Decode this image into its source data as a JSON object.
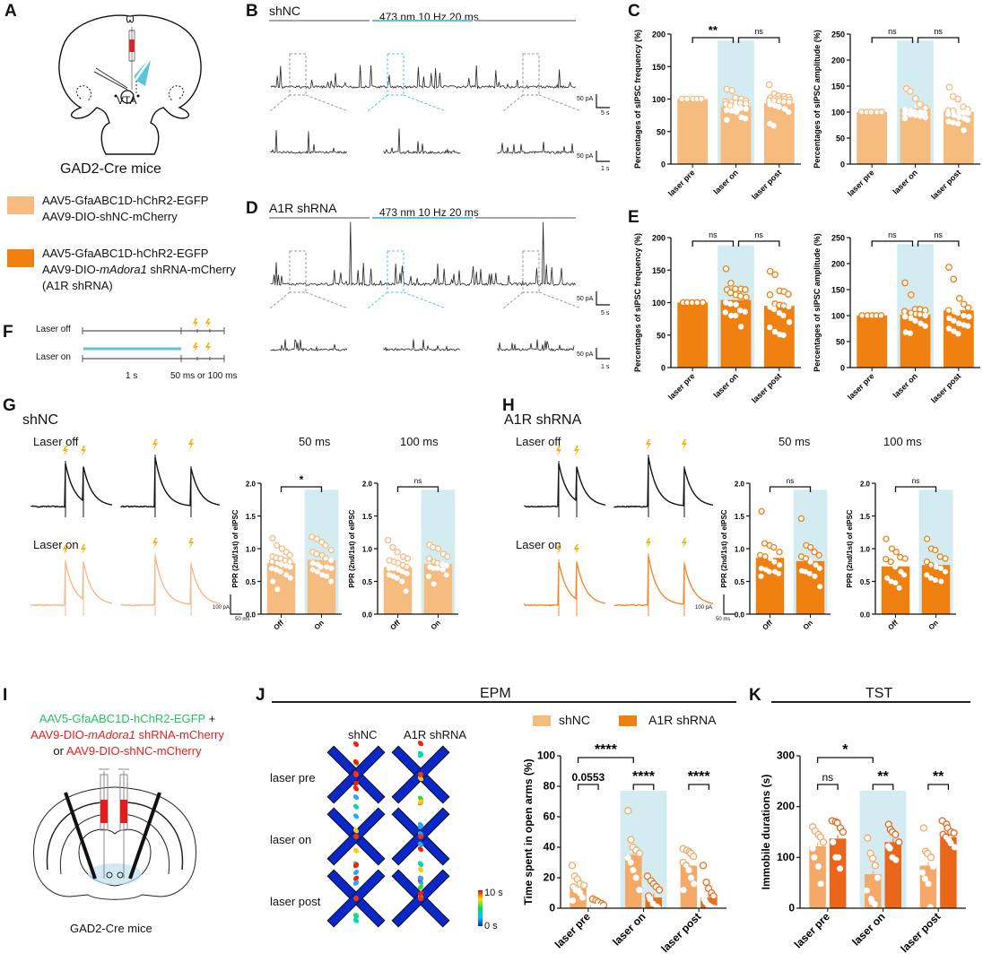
{
  "colors": {
    "shNC": "#f6bb7f",
    "shNC_on_J": "#f4a968",
    "A1R": "#f08010",
    "A1R_K": "#e9661a",
    "laser_bg": "#d3ecf2",
    "laser_bar": "#5bc4d9",
    "gray_bar": "#a6a6a6",
    "bolt": "#f6b21a",
    "green_text": "#22c55e",
    "red_text": "#ee1c1c"
  },
  "panel_labels": {
    "A": "A",
    "B": "B",
    "C": "C",
    "D": "D",
    "E": "E",
    "F": "F",
    "G": "G",
    "H": "H",
    "I": "I",
    "J": "J",
    "K": "K"
  },
  "panelA": {
    "region_label": "VTA",
    "mouse_line": "GAD2-Cre mice",
    "legend": [
      {
        "line1": "AAV5-GfaABC1D-hChR2-EGFP",
        "line2": "AAV9-DIO-shNC-mCherry",
        "line3": ""
      },
      {
        "line1": "AAV5-GfaABC1D-hChR2-EGFP",
        "line2_pre": "AAV9-DIO-",
        "line2_italic": "mAdora1",
        "line2_post": " shRNA-mCherry",
        "line3": "(A1R shRNA)"
      }
    ]
  },
  "panelB": {
    "title": "shNC",
    "stim_label": "473 nm 10 Hz 20 ms",
    "scale_main": {
      "y": "50 pA",
      "x": "5 s"
    },
    "scale_zoom": {
      "y": "50 pA",
      "x": "1 s"
    }
  },
  "panelD": {
    "title": "A1R shRNA",
    "stim_label": "473 nm 10 Hz 20 ms",
    "scale_main": {
      "y": "50 pA",
      "x": "5 s"
    },
    "scale_zoom": {
      "y": "50 pA",
      "x": "1 s"
    }
  },
  "panelF": {
    "rows": [
      "Laser off",
      "Laser on"
    ],
    "time_labels": [
      "1 s",
      "50 ms or 100 ms"
    ]
  },
  "panelG": {
    "title": "shNC",
    "trace_labels": [
      "Laser off",
      "Laser on"
    ],
    "chart_titles": [
      "50 ms",
      "100 ms"
    ],
    "scale": {
      "y": "100 pA",
      "x": "50 ms"
    }
  },
  "panelH": {
    "title": "A1R shRNA",
    "trace_labels": [
      "Laser off",
      "Laser on"
    ],
    "chart_titles": [
      "50 ms",
      "100 ms"
    ],
    "scale": {
      "y": "100 pA",
      "x": "50 ms"
    }
  },
  "panelI": {
    "line1_green": "AAV5-GfaABC1D-hChR2-EGFP",
    "line1_plus": " +",
    "line2_pre": "AAV9-DIO-",
    "line2_italic": "mAdora1",
    "line2_post": " shRNA-mCherry",
    "line3_or": "or ",
    "line3_red": "AAV9-DIO-shNC-mCherry",
    "mouse_line": "GAD2-Cre mice"
  },
  "panelJ": {
    "header": "EPM",
    "heatmap_cols": [
      "shNC",
      "A1R shRNA"
    ],
    "heatmap_rows": [
      "laser pre",
      "laser on",
      "laser post"
    ],
    "colorbar": {
      "max": "10 s",
      "min": "0 s"
    },
    "legend": [
      "shNC",
      "A1R shRNA"
    ]
  },
  "panelK": {
    "header": "TST"
  },
  "chart_data": [
    {
      "id": "C-frequency",
      "type": "bar",
      "panel": "C",
      "ylabel": "Percentages of sIPSC frequency (%)",
      "ylim": [
        0,
        200
      ],
      "yticks": [
        0,
        50,
        100,
        150,
        200
      ],
      "categories": [
        "laser pre",
        "laser on",
        "laser post"
      ],
      "laser_on_index": 1,
      "values": [
        100,
        89,
        94
      ],
      "points": [
        [
          100,
          100,
          100,
          100,
          100
        ],
        [
          115,
          113,
          102,
          100,
          97,
          96,
          95,
          94,
          94,
          93,
          92,
          90,
          88,
          86,
          85,
          83,
          82,
          80,
          72,
          70,
          68
        ],
        [
          122,
          108,
          105,
          104,
          103,
          102,
          101,
          100,
          100,
          99,
          98,
          98,
          97,
          96,
          95,
          92,
          90,
          88,
          85,
          80,
          62,
          59
        ]
      ],
      "comparisons": [
        {
          "from": 0,
          "to": 1,
          "label": "**"
        },
        {
          "from": 1,
          "to": 2,
          "label": "ns"
        }
      ],
      "color": "#f6bb7f"
    },
    {
      "id": "C-amplitude",
      "type": "bar",
      "panel": "C",
      "ylabel": "Percentages of sIPSC amplitude (%)",
      "ylim": [
        0,
        250
      ],
      "yticks": [
        0,
        50,
        100,
        150,
        200,
        250
      ],
      "categories": [
        "laser pre",
        "laser on",
        "laser post"
      ],
      "laser_on_index": 1,
      "values": [
        100,
        107,
        101
      ],
      "points": [
        [
          100,
          100,
          100,
          100,
          100
        ],
        [
          145,
          140,
          126,
          115,
          108,
          104,
          102,
          100,
          100,
          98,
          97,
          95,
          94,
          92,
          90,
          88
        ],
        [
          148,
          130,
          125,
          110,
          105,
          103,
          102,
          100,
          99,
          98,
          96,
          94,
          90,
          88,
          85,
          82,
          80,
          78,
          65
        ]
      ],
      "comparisons": [
        {
          "from": 0,
          "to": 1,
          "label": "ns"
        },
        {
          "from": 1,
          "to": 2,
          "label": "ns"
        }
      ],
      "color": "#f6bb7f"
    },
    {
      "id": "E-frequency",
      "type": "bar",
      "panel": "E",
      "ylabel": "Percentages of sIPSC frequency (%)",
      "ylim": [
        0,
        200
      ],
      "yticks": [
        0,
        50,
        100,
        150,
        200
      ],
      "categories": [
        "laser pre",
        "laser on",
        "laser post"
      ],
      "laser_on_index": 1,
      "values": [
        100,
        104,
        95
      ],
      "points": [
        [
          100,
          100,
          100,
          100,
          100
        ],
        [
          152,
          130,
          121,
          121,
          120,
          120,
          115,
          112,
          110,
          108,
          100,
          98,
          97,
          88,
          86,
          85,
          80,
          80,
          63
        ],
        [
          148,
          143,
          118,
          117,
          113,
          112,
          98,
          96,
          95,
          94,
          93,
          90,
          84,
          80,
          70,
          62,
          55,
          51,
          50
        ]
      ],
      "comparisons": [
        {
          "from": 0,
          "to": 1,
          "label": "ns"
        },
        {
          "from": 1,
          "to": 2,
          "label": "ns"
        }
      ],
      "color": "#f08010"
    },
    {
      "id": "E-amplitude",
      "type": "bar",
      "panel": "E",
      "ylabel": "Percentages of sIPSC amplitude (%)",
      "ylim": [
        0,
        250
      ],
      "yticks": [
        0,
        50,
        100,
        150,
        200,
        250
      ],
      "categories": [
        "laser pre",
        "laser on",
        "laser post"
      ],
      "laser_on_index": 1,
      "values": [
        100,
        102,
        110
      ],
      "points": [
        [
          100,
          100,
          100,
          100,
          100
        ],
        [
          163,
          140,
          112,
          112,
          110,
          108,
          105,
          103,
          102,
          100,
          98,
          95,
          90,
          85,
          80,
          68,
          66
        ],
        [
          193,
          170,
          133,
          122,
          115,
          110,
          108,
          105,
          100,
          98,
          95,
          90,
          85,
          82,
          80,
          75,
          70,
          65
        ]
      ],
      "comparisons": [
        {
          "from": 0,
          "to": 1,
          "label": "ns"
        },
        {
          "from": 1,
          "to": 2,
          "label": "ns"
        }
      ],
      "color": "#f08010"
    },
    {
      "id": "G-50ms",
      "type": "bar",
      "panel": "G",
      "title": "50 ms",
      "ylabel": "PPR (2nd/1st) of eIPSC",
      "ylim": [
        0,
        2.0
      ],
      "yticks": [
        "0.0",
        "0.5",
        "1.0",
        "1.5",
        "2.0"
      ],
      "categories": [
        "Off",
        "On"
      ],
      "laser_on_index": 1,
      "values": [
        0.78,
        0.83
      ],
      "points": [
        [
          1.16,
          1.05,
          1.0,
          0.95,
          0.9,
          0.88,
          0.86,
          0.85,
          0.82,
          0.8,
          0.8,
          0.78,
          0.76,
          0.74,
          0.72,
          0.7,
          0.68,
          0.65,
          0.6,
          0.55,
          0.5,
          0.38
        ],
        [
          1.18,
          1.15,
          1.1,
          1.05,
          0.98,
          0.95,
          0.92,
          0.9,
          0.85,
          0.82,
          0.78,
          0.76,
          0.72,
          0.72,
          0.7,
          0.68,
          0.65,
          0.6,
          0.58,
          0.5
        ]
      ],
      "comparisons": [
        {
          "from": 0,
          "to": 1,
          "label": "*"
        }
      ],
      "color": "#f6bb7f"
    },
    {
      "id": "G-100ms",
      "type": "bar",
      "panel": "G",
      "title": "100 ms",
      "ylabel": "PPR (2nd/1st) of eIPSC",
      "ylim": [
        0,
        2.0
      ],
      "yticks": [
        "0.0",
        "0.5",
        "1.0",
        "1.5",
        "2.0"
      ],
      "categories": [
        "Off",
        "On"
      ],
      "laser_on_index": 1,
      "values": [
        0.72,
        0.77
      ],
      "points": [
        [
          1.13,
          1.02,
          0.95,
          0.88,
          0.85,
          0.82,
          0.8,
          0.78,
          0.75,
          0.72,
          0.7,
          0.7,
          0.68,
          0.65,
          0.62,
          0.6,
          0.58,
          0.55,
          0.5,
          0.35
        ],
        [
          1.06,
          1.02,
          1.0,
          0.92,
          0.88,
          0.85,
          0.8,
          0.78,
          0.76,
          0.74,
          0.72,
          0.7,
          0.7,
          0.68,
          0.6,
          0.58,
          0.46
        ]
      ],
      "comparisons": [
        {
          "from": 0,
          "to": 1,
          "label": "ns"
        }
      ],
      "color": "#f6bb7f"
    },
    {
      "id": "H-50ms",
      "type": "bar",
      "panel": "H",
      "title": "50 ms",
      "ylabel": "PPR (2nd/1st) of eIPSC",
      "ylim": [
        0,
        2.0
      ],
      "yticks": [
        "0.0",
        "0.5",
        "1.0",
        "1.5",
        "2.0"
      ],
      "categories": [
        "Off",
        "On"
      ],
      "laser_on_index": 1,
      "values": [
        0.86,
        0.81
      ],
      "points": [
        [
          1.57,
          1.08,
          1.05,
          1.02,
          0.95,
          0.9,
          0.88,
          0.85,
          0.8,
          0.75,
          0.7,
          0.68,
          0.65,
          0.65,
          0.62,
          0.58
        ],
        [
          1.46,
          1.05,
          1.02,
          0.95,
          0.9,
          0.88,
          0.85,
          0.8,
          0.75,
          0.7,
          0.66,
          0.65,
          0.62,
          0.58,
          0.42
        ]
      ],
      "comparisons": [
        {
          "from": 0,
          "to": 1,
          "label": "ns"
        }
      ],
      "color": "#f08010"
    },
    {
      "id": "H-100ms",
      "type": "bar",
      "panel": "H",
      "title": "100 ms",
      "ylabel": "PPR (2nd/1st) of eIPSC",
      "ylim": [
        0,
        2.0
      ],
      "yticks": [
        "0.0",
        "0.5",
        "1.0",
        "1.5",
        "2.0"
      ],
      "categories": [
        "Off",
        "On"
      ],
      "laser_on_index": 1,
      "values": [
        0.73,
        0.75
      ],
      "points": [
        [
          1.15,
          1.0,
          0.95,
          0.87,
          0.85,
          0.84,
          0.8,
          0.72,
          0.65,
          0.6,
          0.55,
          0.5,
          0.48,
          0.4
        ],
        [
          1.15,
          1.0,
          0.98,
          0.88,
          0.85,
          0.8,
          0.75,
          0.72,
          0.7,
          0.65,
          0.6,
          0.55,
          0.52,
          0.5
        ]
      ],
      "comparisons": [
        {
          "from": 0,
          "to": 1,
          "label": "ns"
        }
      ],
      "color": "#f08010"
    },
    {
      "id": "J-open-arms",
      "type": "bar",
      "panel": "J",
      "ylabel": "Time spent in open arms (%)",
      "ylim": [
        0,
        100
      ],
      "yticks": [
        0,
        20,
        40,
        60,
        80,
        100
      ],
      "categories": [
        "laser pre",
        "laser on",
        "laser post"
      ],
      "laser_on_index": 1,
      "series": [
        {
          "name": "shNC",
          "values": [
            13,
            35,
            28
          ],
          "points": [
            [
              28,
              21,
              19,
              16,
              15,
              14,
              12,
              11,
              10,
              7,
              5
            ],
            [
              64,
              45,
              40,
              38,
              36,
              33,
              30,
              25,
              20,
              12
            ],
            [
              39,
              38,
              37,
              36,
              34,
              30,
              28,
              25,
              20,
              16,
              12
            ]
          ],
          "color": "#f4a968"
        },
        {
          "name": "A1R shRNA",
          "values": [
            2,
            7,
            7
          ],
          "points": [
            [
              6,
              5,
              4,
              3,
              2,
              1,
              1,
              1,
              0
            ],
            [
              21,
              18,
              16,
              14,
              12,
              8,
              6,
              3,
              1,
              0
            ],
            [
              28,
              17,
              13,
              10,
              8,
              6,
              4,
              2,
              1,
              0
            ]
          ],
          "color": "#ea7018"
        }
      ],
      "comparisons": [
        {
          "group": [
            0,
            0
          ],
          "label": "0.0553"
        },
        {
          "group": [
            1,
            1
          ],
          "label": "****"
        },
        {
          "group": [
            2,
            2
          ],
          "label": "****"
        },
        {
          "span": [
            0,
            1
          ],
          "label": "****"
        }
      ]
    },
    {
      "id": "K-immobile",
      "type": "bar",
      "panel": "K",
      "ylabel": "Immobile  durations (s)",
      "ylim": [
        0,
        300
      ],
      "yticks": [
        0,
        100,
        200,
        300
      ],
      "categories": [
        "laser pre",
        "laser on",
        "laser post"
      ],
      "laser_on_index": 1,
      "series": [
        {
          "name": "shNC",
          "values": [
            122,
            67,
            84
          ],
          "points": [
            [
              160,
              152,
              145,
              140,
              130,
              118,
              100,
              82,
              48
            ],
            [
              138,
              108,
              98,
              84,
              60,
              35,
              18,
              12,
              8
            ],
            [
              158,
              112,
              108,
              100,
              82,
              70,
              58,
              48,
              2
            ]
          ],
          "color": "#f4a968"
        },
        {
          "name": "A1R shRNA",
          "values": [
            137,
            130,
            140
          ],
          "points": [
            [
              172,
              170,
              168,
              158,
              150,
              130,
              100,
              100,
              78
            ],
            [
              165,
              155,
              150,
              145,
              130,
              122,
              118,
              100,
              95
            ],
            [
              172,
              165,
              158,
              150,
              148,
              145,
              140,
              135,
              128,
              120
            ]
          ],
          "color": "#e9661a"
        }
      ],
      "comparisons": [
        {
          "group": [
            0,
            0
          ],
          "label": "ns"
        },
        {
          "group": [
            1,
            1
          ],
          "label": "**"
        },
        {
          "group": [
            2,
            2
          ],
          "label": "**"
        },
        {
          "span": [
            0,
            1
          ],
          "label": "*"
        }
      ]
    }
  ]
}
